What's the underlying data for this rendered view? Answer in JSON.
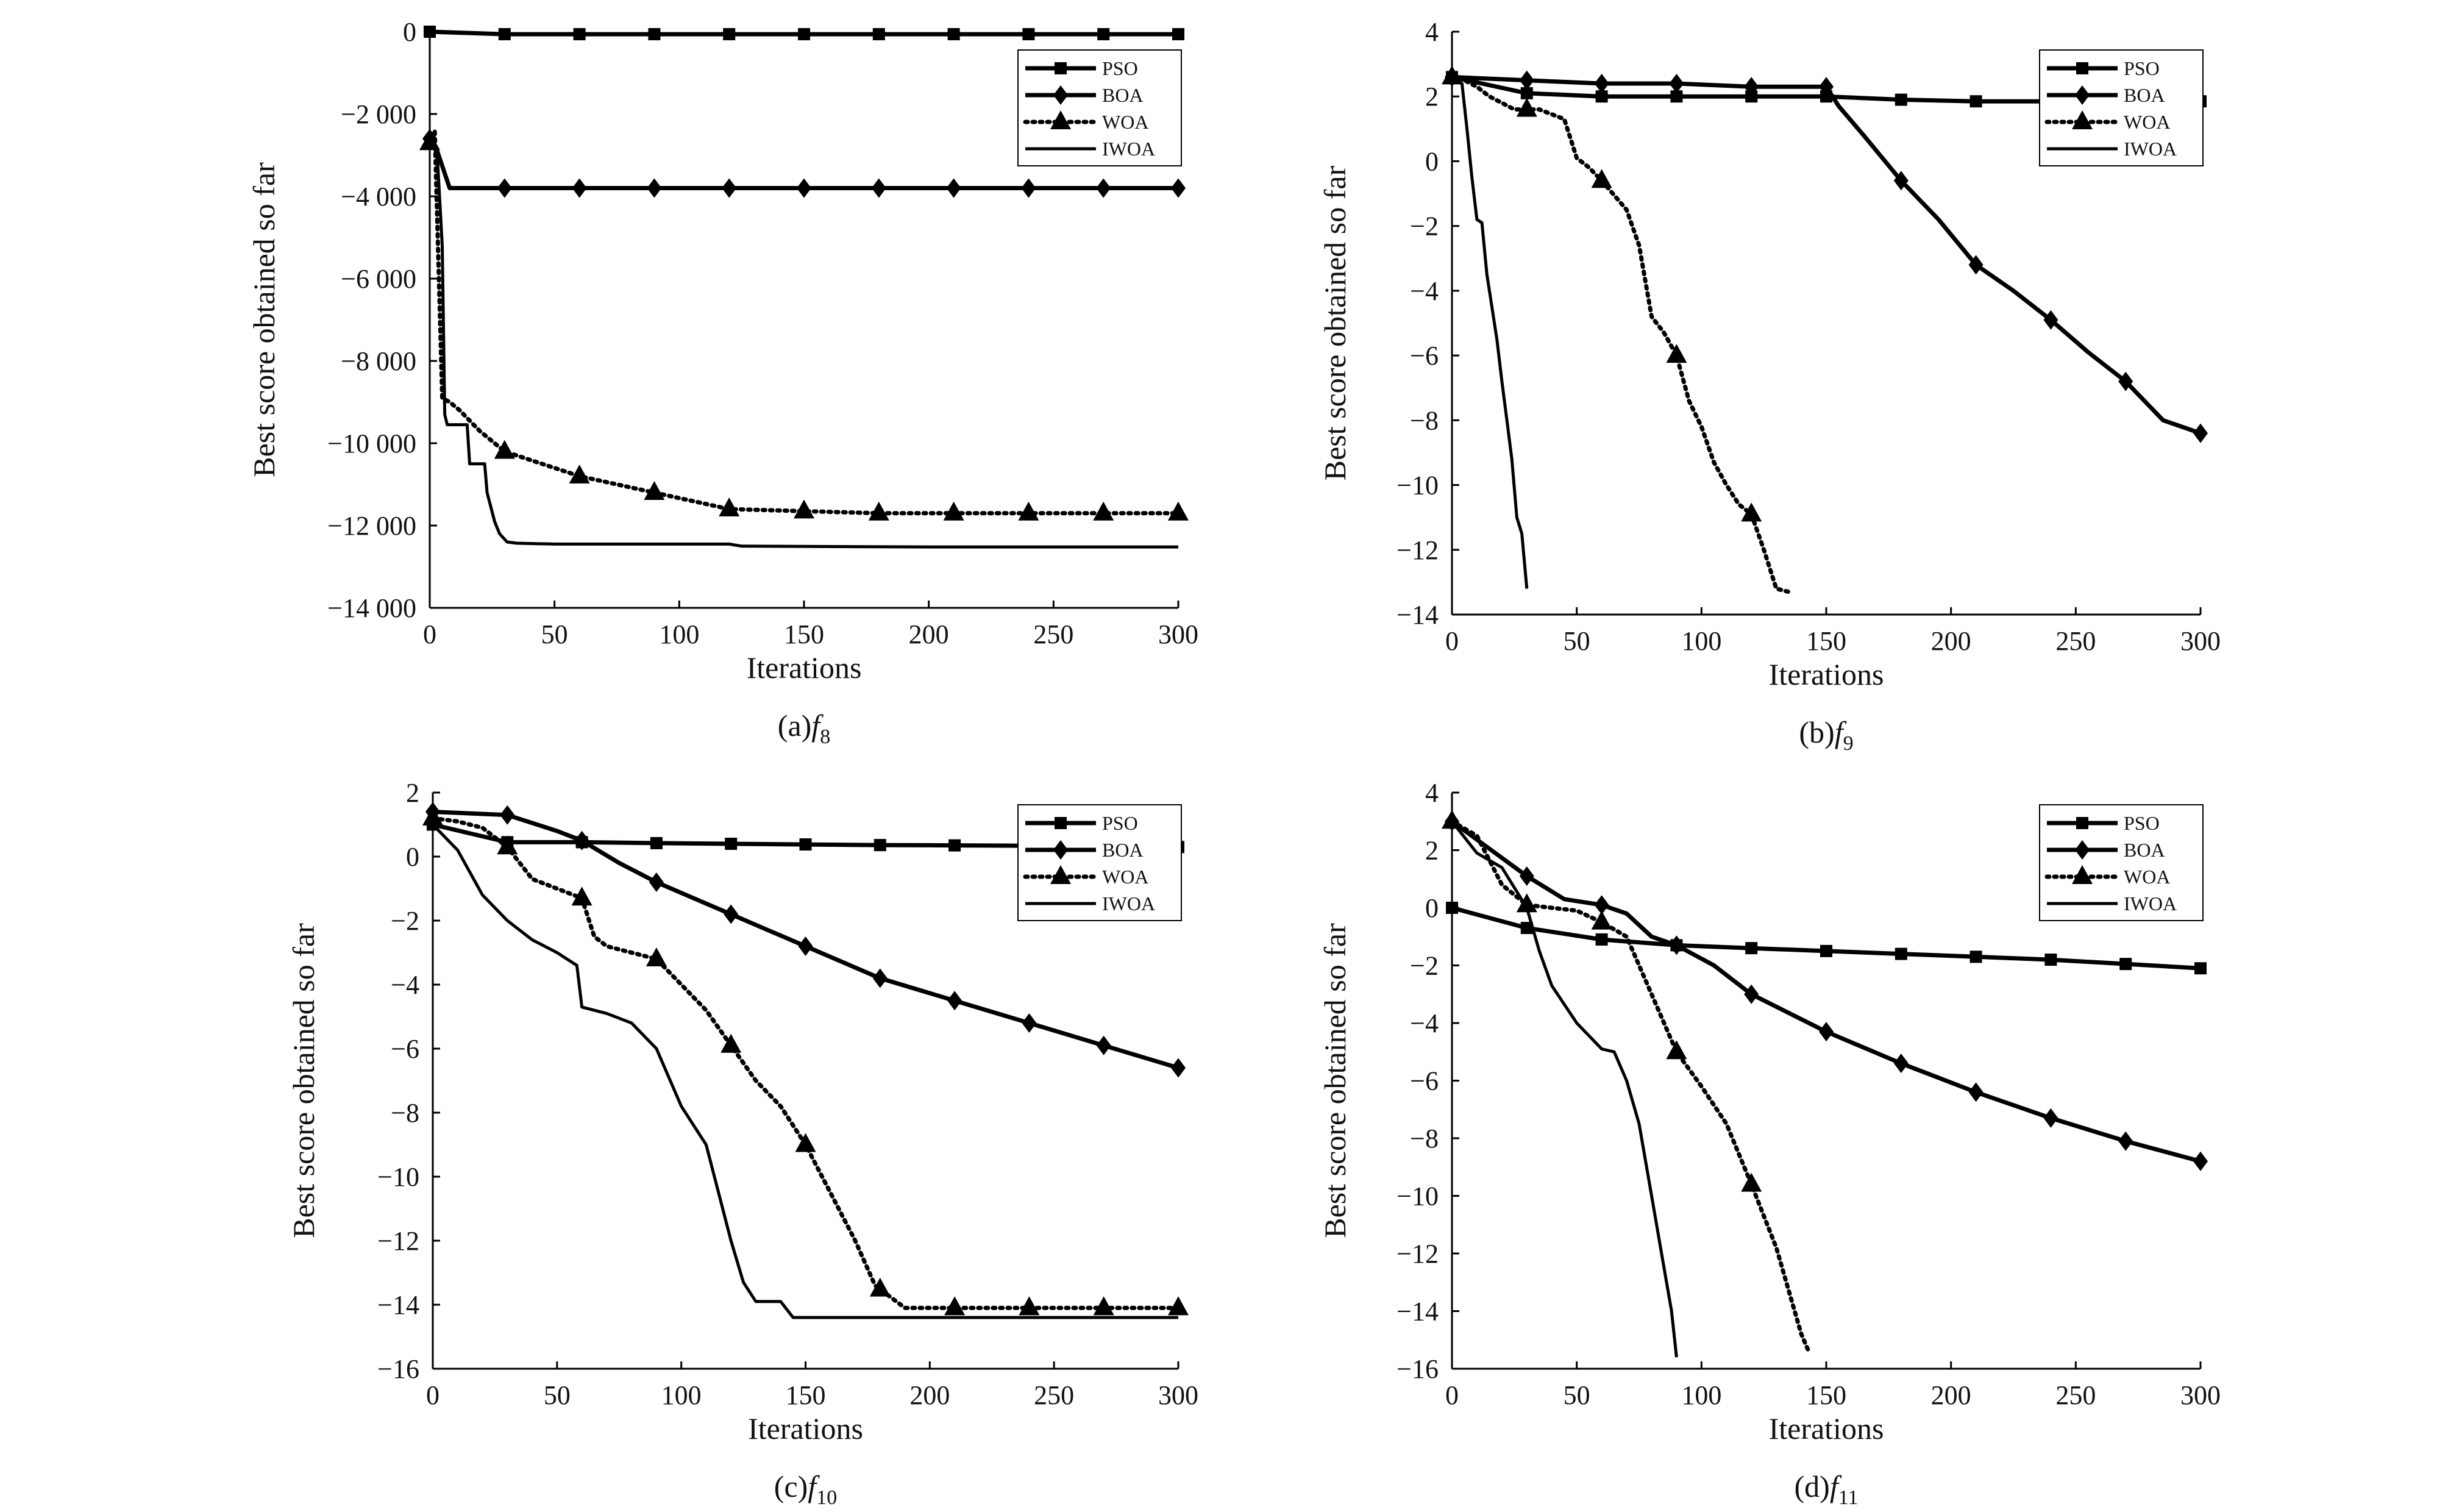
{
  "figure": {
    "legend_labels": [
      "PSO",
      "BOA",
      "WOA",
      "IWOA"
    ]
  },
  "chart_data": [
    {
      "type": "line",
      "caption_prefix": "(a)",
      "caption_func": "f",
      "caption_sub": "8",
      "xlabel": "Iterations",
      "ylabel": "Best score obtained so far",
      "xlim": [
        0,
        300
      ],
      "ylim": [
        -14000,
        0
      ],
      "xticks": [
        0,
        50,
        100,
        150,
        200,
        250,
        300
      ],
      "yticks": [
        0,
        -2000,
        -4000,
        -6000,
        -8000,
        -10000,
        -12000,
        -14000
      ],
      "ytick_labels": [
        "0",
        "−2 000",
        "−4 000",
        "−6 000",
        "−8 000",
        "−10 000",
        "−12 000",
        "−14 000"
      ],
      "grid": false,
      "legend_position": "top-right",
      "series": [
        {
          "name": "PSO",
          "marker": "square",
          "style": "solid-thick",
          "x": [
            0,
            30,
            60,
            90,
            120,
            150,
            180,
            210,
            240,
            270,
            300
          ],
          "y": [
            0,
            -60,
            -60,
            -60,
            -60,
            -60,
            -60,
            -60,
            -60,
            -60,
            -60
          ]
        },
        {
          "name": "BOA",
          "marker": "diamond",
          "style": "solid-thick",
          "x": [
            0,
            3,
            8,
            30,
            60,
            90,
            120,
            150,
            180,
            210,
            240,
            270,
            300
          ],
          "y": [
            -2600,
            -2900,
            -3800,
            -3800,
            -3800,
            -3800,
            -3800,
            -3800,
            -3800,
            -3800,
            -3800,
            -3800,
            -3800
          ]
        },
        {
          "name": "WOA",
          "marker": "triangle",
          "style": "dotted",
          "x": [
            0,
            2,
            5,
            8,
            12,
            20,
            30,
            45,
            60,
            75,
            90,
            105,
            120,
            150,
            180,
            210,
            240,
            270,
            300
          ],
          "y": [
            -2700,
            -2400,
            -8900,
            -9000,
            -9200,
            -9700,
            -10200,
            -10500,
            -10800,
            -11000,
            -11200,
            -11400,
            -11600,
            -11650,
            -11700,
            -11700,
            -11700,
            -11700,
            -11700
          ]
        },
        {
          "name": "IWOA",
          "marker": "none",
          "style": "solid",
          "x": [
            0,
            3,
            5,
            6,
            7,
            15,
            16,
            22,
            23,
            26,
            28,
            31,
            35,
            50,
            80,
            120,
            125,
            200,
            300
          ],
          "y": [
            -2600,
            -3000,
            -5200,
            -9300,
            -9550,
            -9550,
            -10500,
            -10500,
            -11200,
            -11900,
            -12200,
            -12400,
            -12430,
            -12450,
            -12450,
            -12450,
            -12500,
            -12520,
            -12520
          ]
        }
      ]
    },
    {
      "type": "line",
      "caption_prefix": "(b)",
      "caption_func": "f",
      "caption_sub": "9",
      "xlabel": "Iterations",
      "ylabel": "Best score obtained so far",
      "xlim": [
        0,
        300
      ],
      "ylim": [
        -14,
        4
      ],
      "xticks": [
        0,
        50,
        100,
        150,
        200,
        250,
        300
      ],
      "yticks": [
        4,
        2,
        0,
        -2,
        -4,
        -6,
        -8,
        -10,
        -12,
        -14
      ],
      "ytick_labels": [
        "4",
        "2",
        "0",
        "−2",
        "−4",
        "−6",
        "−8",
        "−10",
        "−12",
        "−14"
      ],
      "grid": false,
      "legend_position": "top-right",
      "series": [
        {
          "name": "PSO",
          "marker": "square",
          "style": "solid-thick",
          "x": [
            0,
            30,
            60,
            90,
            120,
            150,
            180,
            210,
            240,
            270,
            300
          ],
          "y": [
            2.6,
            2.1,
            2.0,
            2.0,
            2.0,
            2.0,
            1.9,
            1.85,
            1.85,
            1.85,
            1.85
          ]
        },
        {
          "name": "BOA",
          "marker": "diamond",
          "style": "solid-thick",
          "x": [
            0,
            30,
            60,
            90,
            120,
            150,
            155,
            165,
            180,
            195,
            210,
            225,
            240,
            255,
            270,
            285,
            300
          ],
          "y": [
            2.6,
            2.5,
            2.4,
            2.4,
            2.3,
            2.3,
            1.7,
            0.8,
            -0.6,
            -1.8,
            -3.2,
            -4.0,
            -4.9,
            -5.9,
            -6.8,
            -8.0,
            -8.4
          ]
        },
        {
          "name": "WOA",
          "marker": "triangle",
          "style": "dotted",
          "x": [
            0,
            5,
            10,
            15,
            20,
            25,
            30,
            35,
            45,
            50,
            55,
            60,
            70,
            75,
            80,
            85,
            90,
            95,
            100,
            105,
            110,
            115,
            120,
            125,
            130,
            135
          ],
          "y": [
            2.6,
            2.5,
            2.3,
            2.0,
            1.8,
            1.6,
            1.6,
            1.6,
            1.3,
            0.1,
            -0.2,
            -0.6,
            -1.5,
            -2.6,
            -4.8,
            -5.3,
            -6.0,
            -7.4,
            -8.2,
            -9.3,
            -10.0,
            -10.6,
            -10.9,
            -12.0,
            -13.2,
            -13.3
          ]
        },
        {
          "name": "IWOA",
          "marker": "none",
          "style": "solid",
          "x": [
            0,
            4,
            6,
            8,
            10,
            12,
            14,
            16,
            18,
            20,
            22,
            24,
            26,
            28,
            30
          ],
          "y": [
            2.5,
            2.4,
            1.0,
            -0.5,
            -1.8,
            -1.9,
            -3.5,
            -4.5,
            -5.5,
            -6.8,
            -8.0,
            -9.2,
            -11.0,
            -11.5,
            -13.2
          ]
        }
      ]
    },
    {
      "type": "line",
      "caption_prefix": "(c)",
      "caption_func": "f",
      "caption_sub": "10",
      "xlabel": "Iterations",
      "ylabel": "Best score obtained so far",
      "xlim": [
        0,
        300
      ],
      "ylim": [
        -16,
        2
      ],
      "xticks": [
        0,
        50,
        100,
        150,
        200,
        250,
        300
      ],
      "yticks": [
        2,
        0,
        -2,
        -4,
        -6,
        -8,
        -10,
        -12,
        -14,
        -16
      ],
      "ytick_labels": [
        "2",
        "0",
        "−2",
        "−4",
        "−6",
        "−8",
        "−10",
        "−12",
        "−14",
        "−16"
      ],
      "grid": false,
      "legend_position": "top-right",
      "series": [
        {
          "name": "PSO",
          "marker": "square",
          "style": "solid-thick",
          "x": [
            0,
            30,
            60,
            90,
            120,
            150,
            180,
            210,
            240,
            270,
            300
          ],
          "y": [
            1.0,
            0.45,
            0.45,
            0.42,
            0.4,
            0.38,
            0.36,
            0.35,
            0.34,
            0.33,
            0.3
          ]
        },
        {
          "name": "BOA",
          "marker": "diamond",
          "style": "solid-thick",
          "x": [
            0,
            30,
            50,
            60,
            75,
            90,
            105,
            120,
            135,
            150,
            180,
            210,
            240,
            270,
            300
          ],
          "y": [
            1.4,
            1.3,
            0.8,
            0.5,
            -0.2,
            -0.8,
            -1.3,
            -1.8,
            -2.3,
            -2.8,
            -3.8,
            -4.5,
            -5.2,
            -5.9,
            -6.6
          ]
        },
        {
          "name": "WOA",
          "marker": "triangle",
          "style": "dotted",
          "x": [
            0,
            10,
            20,
            30,
            40,
            50,
            60,
            65,
            70,
            90,
            100,
            110,
            120,
            130,
            140,
            150,
            160,
            170,
            178,
            190,
            210,
            240,
            270,
            300
          ],
          "y": [
            1.2,
            1.1,
            0.9,
            0.3,
            -0.7,
            -1.0,
            -1.3,
            -2.5,
            -2.8,
            -3.2,
            -4.0,
            -4.8,
            -5.9,
            -7.0,
            -7.8,
            -9.0,
            -10.5,
            -12.0,
            -13.4,
            -14.1,
            -14.1,
            -14.1,
            -14.1,
            -14.1
          ]
        },
        {
          "name": "IWOA",
          "marker": "none",
          "style": "solid",
          "x": [
            0,
            10,
            20,
            30,
            40,
            50,
            58,
            60,
            70,
            80,
            90,
            100,
            110,
            115,
            120,
            125,
            130,
            140,
            145,
            200,
            250,
            300
          ],
          "y": [
            1.0,
            0.2,
            -1.2,
            -2.0,
            -2.6,
            -3.0,
            -3.4,
            -4.7,
            -4.9,
            -5.2,
            -6.0,
            -7.8,
            -9.0,
            -10.5,
            -12.0,
            -13.3,
            -13.9,
            -13.9,
            -14.4,
            -14.4,
            -14.4,
            -14.4
          ]
        }
      ]
    },
    {
      "type": "line",
      "caption_prefix": "(d)",
      "caption_func": "f",
      "caption_sub": "11",
      "xlabel": "Iterations",
      "ylabel": "Best score obtained so far",
      "xlim": [
        0,
        300
      ],
      "ylim": [
        -16,
        4
      ],
      "xticks": [
        0,
        50,
        100,
        150,
        200,
        250,
        300
      ],
      "yticks": [
        4,
        2,
        0,
        -2,
        -4,
        -6,
        -8,
        -10,
        -12,
        -14,
        -16
      ],
      "ytick_labels": [
        "4",
        "2",
        "0",
        "−2",
        "−4",
        "−6",
        "−8",
        "−10",
        "−12",
        "−14",
        "−16"
      ],
      "grid": false,
      "legend_position": "top-right",
      "series": [
        {
          "name": "PSO",
          "marker": "square",
          "style": "solid-thick",
          "x": [
            0,
            30,
            60,
            90,
            120,
            150,
            180,
            210,
            240,
            270,
            300
          ],
          "y": [
            0.0,
            -0.7,
            -1.1,
            -1.3,
            -1.4,
            -1.5,
            -1.6,
            -1.7,
            -1.8,
            -1.95,
            -2.1
          ]
        },
        {
          "name": "BOA",
          "marker": "diamond",
          "style": "solid-thick",
          "x": [
            0,
            30,
            45,
            60,
            70,
            80,
            90,
            105,
            120,
            150,
            180,
            210,
            240,
            270,
            300
          ],
          "y": [
            3.0,
            1.1,
            0.3,
            0.1,
            -0.2,
            -1.0,
            -1.3,
            -2.0,
            -3.0,
            -4.3,
            -5.4,
            -6.4,
            -7.3,
            -8.1,
            -8.8
          ]
        },
        {
          "name": "WOA",
          "marker": "triangle",
          "style": "dotted",
          "x": [
            0,
            10,
            20,
            30,
            40,
            50,
            60,
            70,
            80,
            90,
            100,
            110,
            120,
            130,
            140,
            143
          ],
          "y": [
            3.0,
            2.5,
            0.8,
            0.1,
            0.0,
            -0.1,
            -0.5,
            -1.0,
            -3.0,
            -5.0,
            -6.2,
            -7.5,
            -9.6,
            -11.8,
            -14.8,
            -15.4
          ]
        },
        {
          "name": "IWOA",
          "marker": "none",
          "style": "solid",
          "x": [
            0,
            10,
            20,
            30,
            35,
            40,
            50,
            60,
            65,
            70,
            75,
            80,
            85,
            88,
            90
          ],
          "y": [
            3.0,
            1.9,
            1.4,
            0.0,
            -1.5,
            -2.7,
            -4.0,
            -4.9,
            -5.0,
            -6.0,
            -7.5,
            -10.0,
            -12.5,
            -14.0,
            -15.6
          ]
        }
      ]
    }
  ]
}
